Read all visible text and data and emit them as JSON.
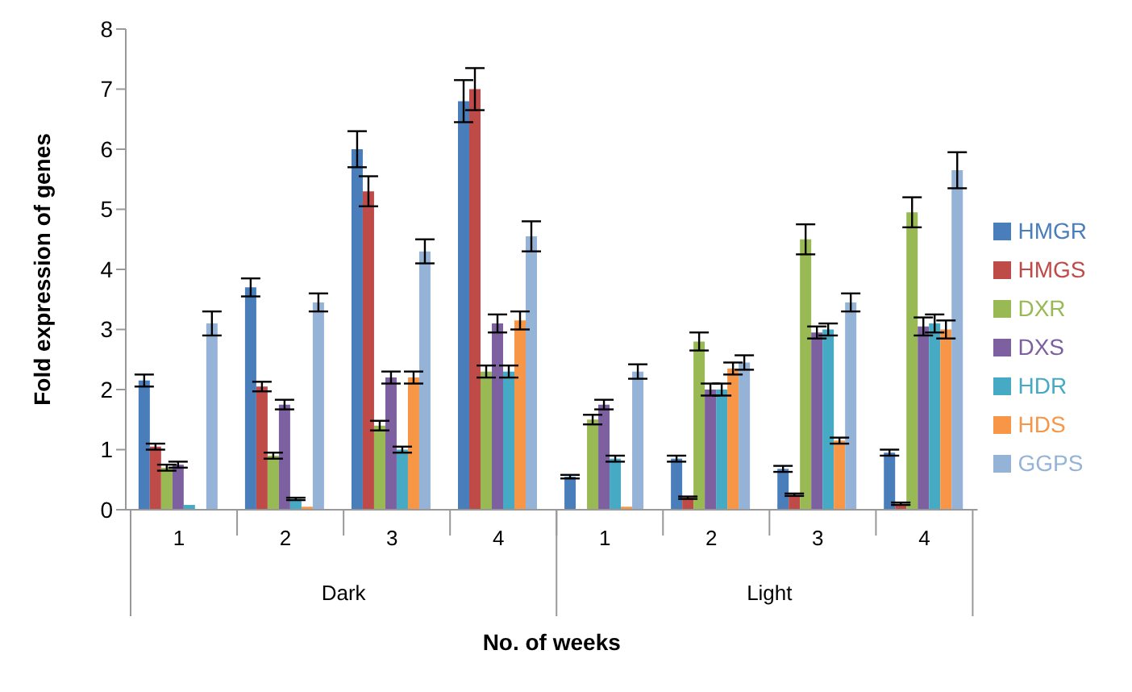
{
  "chart_data": {
    "type": "bar",
    "xlabel": "No. of weeks",
    "ylabel": "Fold expression of genes",
    "categories": [
      "1",
      "2",
      "3",
      "4",
      "1",
      "2",
      "3",
      "4"
    ],
    "annotations": [
      "Dark",
      "Light"
    ],
    "ylim": [
      0,
      8
    ],
    "yticks": [
      0,
      1,
      2,
      3,
      4,
      5,
      6,
      7,
      8
    ],
    "grid": false,
    "legend": "right",
    "series": [
      {
        "name": "HMGR",
        "color": "#4a7ebb",
        "values": [
          2.15,
          3.7,
          6.0,
          6.8,
          0.55,
          0.85,
          0.68,
          0.95
        ],
        "errors": [
          0.1,
          0.15,
          0.3,
          0.35,
          0.03,
          0.05,
          0.05,
          0.05
        ]
      },
      {
        "name": "HMGS",
        "color": "#be4b48",
        "values": [
          1.05,
          2.05,
          5.3,
          7.0,
          null,
          0.2,
          0.25,
          0.1
        ],
        "errors": [
          0.05,
          0.08,
          0.25,
          0.35,
          null,
          0.02,
          0.02,
          0.02
        ]
      },
      {
        "name": "DXR",
        "color": "#98b954",
        "values": [
          0.7,
          0.9,
          1.4,
          2.3,
          1.5,
          2.8,
          4.5,
          4.95
        ],
        "errors": [
          0.05,
          0.05,
          0.08,
          0.1,
          0.08,
          0.15,
          0.25,
          0.25
        ]
      },
      {
        "name": "DXS",
        "color": "#7d60a0",
        "values": [
          0.75,
          1.75,
          2.2,
          3.1,
          1.75,
          2.0,
          2.95,
          3.05
        ],
        "errors": [
          0.05,
          0.08,
          0.1,
          0.15,
          0.08,
          0.1,
          0.1,
          0.15
        ]
      },
      {
        "name": "HDR",
        "color": "#46aac5",
        "values": [
          0.08,
          0.18,
          1.0,
          2.3,
          0.85,
          2.0,
          3.0,
          3.1
        ],
        "errors": [
          null,
          0.02,
          0.05,
          0.1,
          0.05,
          0.1,
          0.1,
          0.15
        ]
      },
      {
        "name": "HDS",
        "color": "#f79646",
        "values": [
          null,
          0.05,
          2.2,
          3.15,
          0.05,
          2.35,
          1.15,
          3.0
        ],
        "errors": [
          null,
          null,
          0.1,
          0.15,
          null,
          0.1,
          0.05,
          0.15
        ]
      },
      {
        "name": "GGPS",
        "color": "#95b3d7",
        "values": [
          3.1,
          3.45,
          4.3,
          4.55,
          2.3,
          2.45,
          3.45,
          5.65
        ],
        "errors": [
          0.2,
          0.15,
          0.2,
          0.25,
          0.12,
          0.12,
          0.15,
          0.3
        ]
      }
    ]
  }
}
